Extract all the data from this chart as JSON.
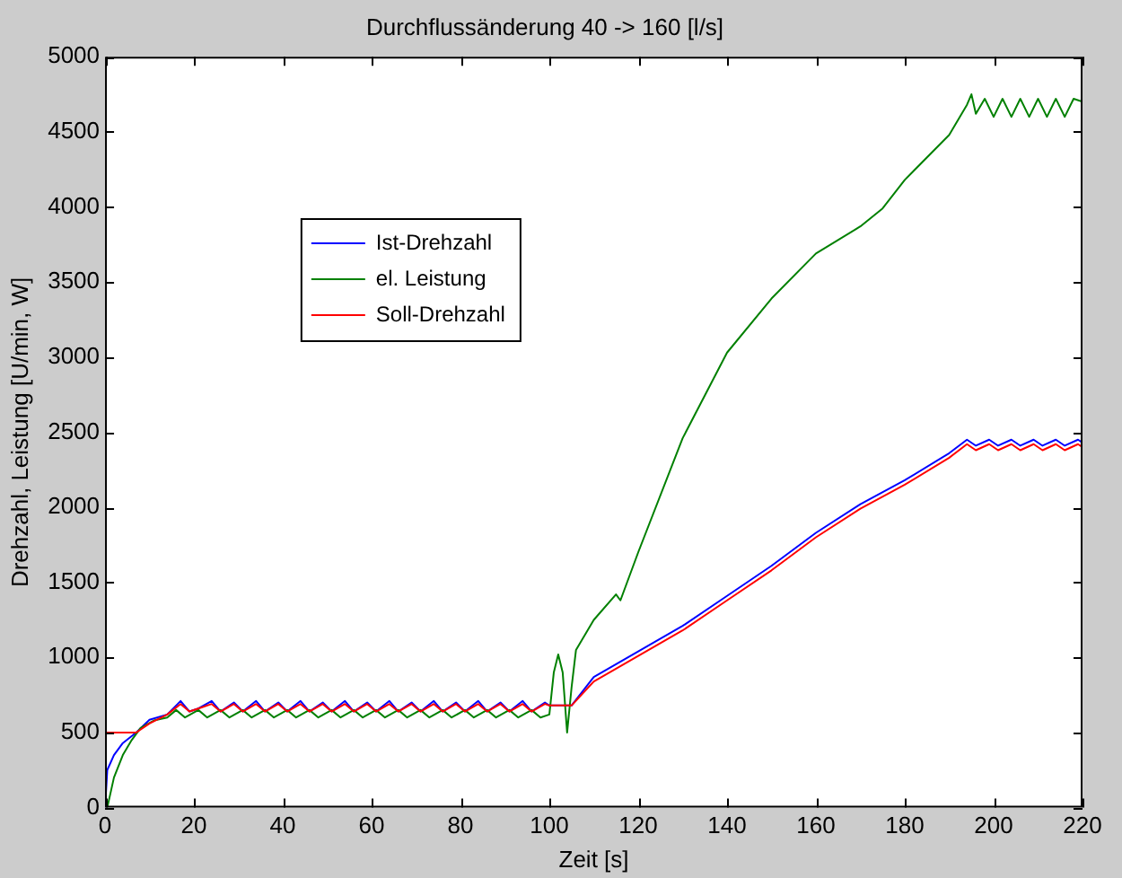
{
  "chart_data": {
    "type": "line",
    "title": "Durchflussänderung 40 -> 160 [l/s]",
    "xlabel": "Zeit [s]",
    "ylabel": "Drehzahl, Leistung [U/min, W]",
    "xlim": [
      0,
      220
    ],
    "xticks": [
      0,
      20,
      40,
      60,
      80,
      100,
      120,
      140,
      160,
      180,
      200,
      220
    ],
    "ylim": [
      0,
      5000
    ],
    "yticks": [
      0,
      500,
      1000,
      1500,
      2000,
      2500,
      3000,
      3500,
      4000,
      4500,
      5000
    ],
    "grid": false,
    "legend": "top left",
    "marker": "none",
    "line_style": "solid",
    "series": [
      {
        "name": "Ist-Drehzahl",
        "color": "#0000ff",
        "x": [
          0,
          0.5,
          2,
          4,
          7,
          10,
          14,
          17,
          19,
          21,
          24,
          26,
          29,
          31,
          34,
          36,
          39,
          41,
          44,
          46,
          49,
          51,
          54,
          56,
          59,
          61,
          64,
          66,
          69,
          71,
          74,
          76,
          79,
          81,
          84,
          86,
          89,
          91,
          94,
          96,
          99,
          100,
          105,
          110,
          120,
          130,
          140,
          150,
          160,
          170,
          180,
          190,
          194,
          196,
          199,
          201,
          204,
          206,
          209,
          211,
          214,
          216,
          219,
          220
        ],
        "values": [
          0,
          250,
          350,
          430,
          500,
          585,
          620,
          710,
          640,
          660,
          710,
          640,
          700,
          640,
          710,
          640,
          700,
          640,
          710,
          640,
          700,
          640,
          710,
          640,
          700,
          640,
          710,
          640,
          700,
          640,
          710,
          640,
          700,
          640,
          710,
          640,
          700,
          640,
          710,
          640,
          700,
          680,
          680,
          870,
          1040,
          1210,
          1410,
          1610,
          1830,
          2020,
          2180,
          2360,
          2450,
          2410,
          2450,
          2410,
          2450,
          2410,
          2450,
          2410,
          2450,
          2410,
          2450,
          2430
        ]
      },
      {
        "name": "el. Leistung",
        "color": "#008000",
        "x": [
          0.5,
          2,
          4,
          6,
          8,
          11,
          14,
          16,
          18,
          21,
          23,
          26,
          28,
          31,
          33,
          36,
          38,
          41,
          43,
          46,
          48,
          51,
          53,
          56,
          58,
          61,
          63,
          66,
          68,
          71,
          73,
          76,
          78,
          81,
          83,
          86,
          88,
          91,
          93,
          96,
          98,
          100,
          101,
          102,
          103,
          104,
          105,
          106,
          110,
          115,
          116,
          120,
          130,
          140,
          150,
          160,
          170,
          175,
          180,
          190,
          194,
          195,
          196,
          198,
          200,
          202,
          204,
          206,
          208,
          210,
          212,
          214,
          216,
          218,
          220
        ],
        "values": [
          0,
          200,
          350,
          450,
          530,
          580,
          600,
          650,
          600,
          650,
          600,
          650,
          600,
          650,
          600,
          650,
          600,
          650,
          600,
          650,
          600,
          650,
          600,
          650,
          600,
          650,
          600,
          650,
          600,
          650,
          600,
          650,
          600,
          650,
          600,
          650,
          600,
          650,
          600,
          650,
          600,
          620,
          900,
          1020,
          900,
          500,
          800,
          1050,
          1250,
          1420,
          1380,
          1700,
          2460,
          3030,
          3390,
          3690,
          3870,
          3990,
          4180,
          4480,
          4680,
          4750,
          4620,
          4720,
          4600,
          4720,
          4600,
          4720,
          4600,
          4720,
          4600,
          4720,
          4600,
          4720,
          4700
        ]
      },
      {
        "name": "Soll-Drehzahl",
        "color": "#ff0000",
        "x": [
          0,
          7,
          10,
          14,
          17,
          19,
          21,
          24,
          26,
          29,
          31,
          34,
          36,
          39,
          41,
          44,
          46,
          49,
          51,
          54,
          56,
          59,
          61,
          64,
          66,
          69,
          71,
          74,
          76,
          79,
          81,
          84,
          86,
          89,
          91,
          94,
          96,
          99,
          100,
          105,
          110,
          120,
          130,
          140,
          150,
          160,
          170,
          180,
          190,
          194,
          196,
          199,
          201,
          204,
          206,
          209,
          211,
          214,
          216,
          219,
          220
        ],
        "values": [
          500,
          500,
          560,
          620,
          690,
          640,
          660,
          690,
          640,
          690,
          640,
          690,
          640,
          690,
          640,
          690,
          640,
          690,
          640,
          690,
          640,
          690,
          640,
          690,
          640,
          690,
          640,
          690,
          640,
          690,
          640,
          690,
          640,
          690,
          640,
          690,
          640,
          690,
          680,
          680,
          840,
          1010,
          1180,
          1380,
          1580,
          1800,
          1990,
          2150,
          2330,
          2420,
          2380,
          2420,
          2380,
          2420,
          2380,
          2420,
          2380,
          2420,
          2380,
          2420,
          2400
        ]
      }
    ]
  }
}
